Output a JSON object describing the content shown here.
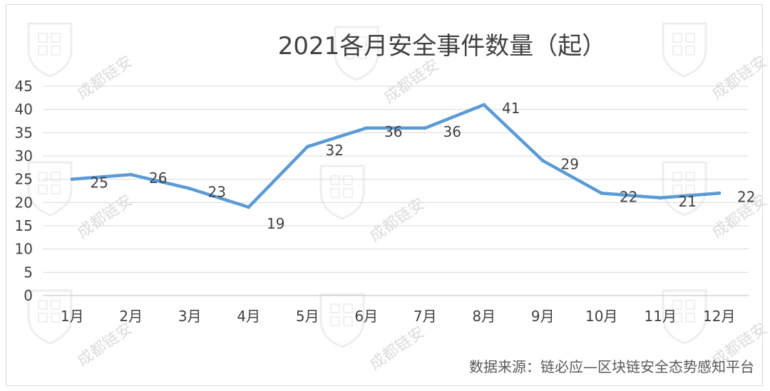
{
  "chart_data": {
    "type": "line",
    "title": "2021各月安全事件数量（起）",
    "categories": [
      "1月",
      "2月",
      "3月",
      "4月",
      "5月",
      "6月",
      "7月",
      "8月",
      "9月",
      "10月",
      "11月",
      "12月"
    ],
    "series": [
      {
        "values": [
          25,
          26,
          23,
          19,
          32,
          36,
          36,
          41,
          29,
          22,
          21,
          22
        ]
      }
    ],
    "ylim": [
      0,
      45
    ],
    "yticks": [
      0,
      5,
      10,
      15,
      20,
      25,
      30,
      35,
      40,
      45
    ],
    "grid": true,
    "legend": "none",
    "line_color": "#5B9BD5",
    "source_note": "数据来源：链必应—区块链安全态势感知平台"
  },
  "watermark": {
    "text": "成都链安"
  }
}
